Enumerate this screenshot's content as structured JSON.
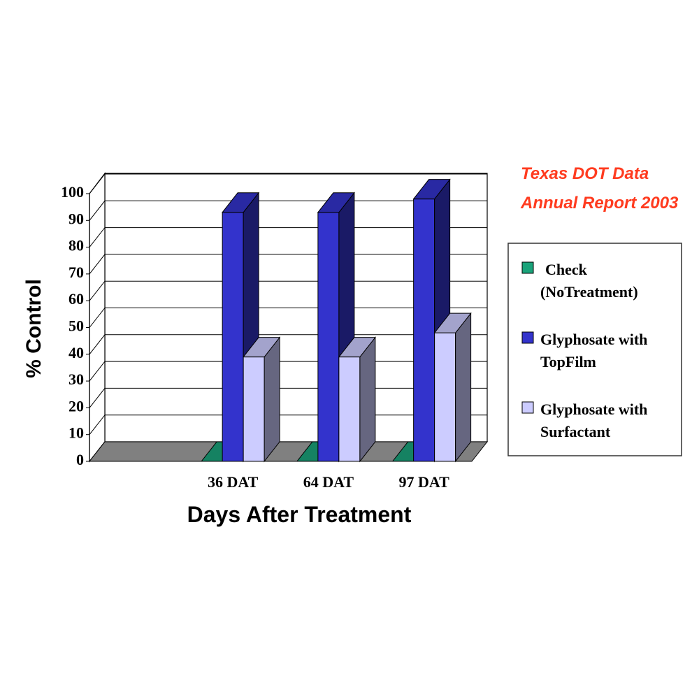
{
  "chart_data": {
    "type": "bar3d",
    "annotations": [
      "Texas DOT Data",
      "Annual Report 2003"
    ],
    "xlabel": "Days After Treatment",
    "ylabel": "% Control",
    "categories": [
      null,
      "36 DAT",
      "64 DAT",
      "97 DAT"
    ],
    "series": [
      {
        "name": "Check\n(NoTreatment)",
        "color": "#1aa37a",
        "values": [
          null,
          0,
          0,
          0
        ]
      },
      {
        "name": "Glyphosate with\nTopFilm",
        "color": "#3333cc",
        "values": [
          null,
          93,
          93,
          98
        ]
      },
      {
        "name": "Glyphosate with\nSurfactant",
        "color": "#ccccff",
        "values": [
          null,
          39,
          39,
          48
        ]
      }
    ],
    "ylim": [
      0,
      100
    ],
    "yticks": [
      0,
      10,
      20,
      30,
      40,
      50,
      60,
      70,
      80,
      90,
      100
    ],
    "grid": true,
    "legend": "right"
  }
}
